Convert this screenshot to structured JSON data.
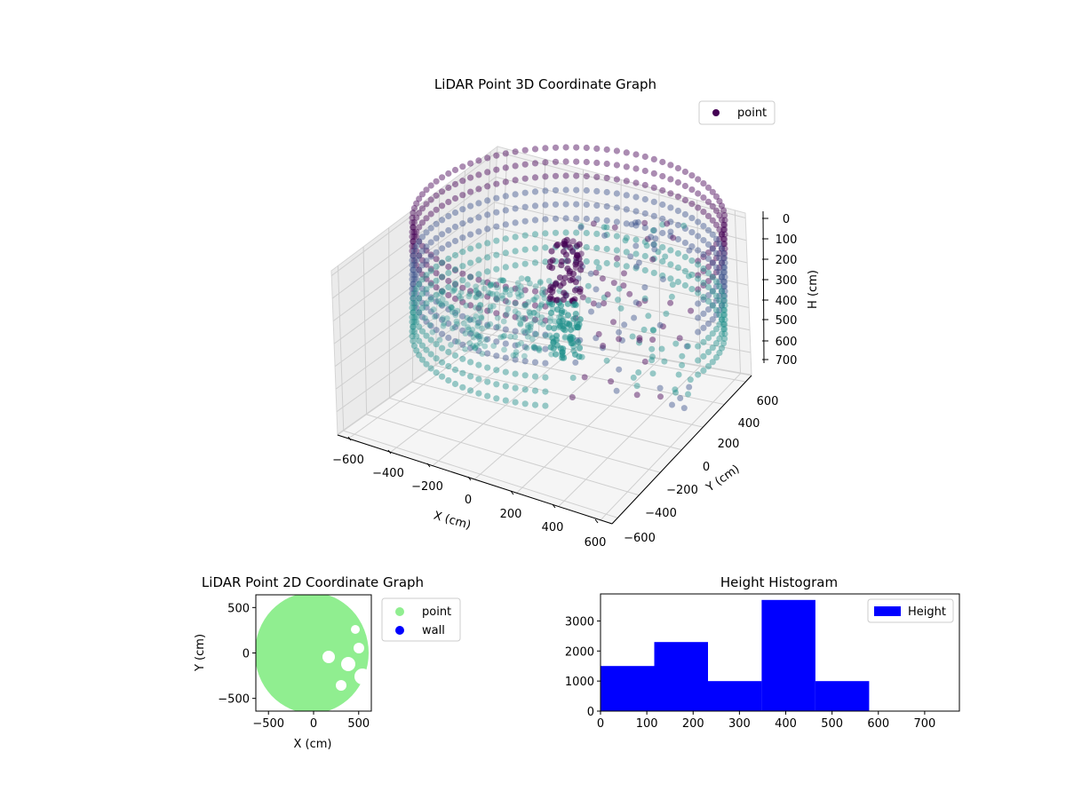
{
  "colors": {
    "viridis_dark": "#440154",
    "viridis_mid": "#3b528b",
    "viridis_teal": "#21918c",
    "point2d": "#90ee90",
    "wall2d": "#0000ff",
    "hist_bar": "#0000ff"
  },
  "chart_data": [
    {
      "type": "scatter3d",
      "title": "LiDAR Point 3D Coordinate Graph",
      "xlabel": "X (cm)",
      "ylabel": "Y (cm)",
      "zlabel": "H (cm)",
      "x_ticks": [
        "−600",
        "−400",
        "−200",
        "0",
        "200",
        "400",
        "600"
      ],
      "y_ticks": [
        "−600",
        "−400",
        "−200",
        "0",
        "200",
        "400",
        "600"
      ],
      "z_ticks": [
        "0",
        "100",
        "200",
        "300",
        "400",
        "500",
        "600",
        "700"
      ],
      "xlim": [
        -600,
        600
      ],
      "ylim": [
        -600,
        600
      ],
      "zlim": [
        0,
        750
      ],
      "z_inverted": true,
      "grid": true,
      "legend": {
        "position": "top-right",
        "entries": [
          "point"
        ]
      },
      "series": [
        {
          "name": "point",
          "color": "#440154"
        }
      ]
    },
    {
      "type": "scatter",
      "title": "LiDAR Point 2D Coordinate Graph",
      "xlabel": "X (cm)",
      "ylabel": "Y (cm)",
      "x_ticks": [
        "−500",
        "0",
        "500"
      ],
      "y_ticks": [
        "−500",
        "0",
        "500"
      ],
      "xlim": [
        -640,
        640
      ],
      "ylim": [
        -640,
        640
      ],
      "legend": {
        "position": "outside-right",
        "entries": [
          "point",
          "wall"
        ]
      },
      "series": [
        {
          "name": "point",
          "color": "#90ee90"
        },
        {
          "name": "wall",
          "color": "#0000ff"
        }
      ]
    },
    {
      "type": "bar",
      "title": "Height Histogram",
      "legend": {
        "position": "top-right",
        "entries": [
          "Height"
        ]
      },
      "series_name": "Height",
      "bins": [
        {
          "x0": 0,
          "x1": 116,
          "count": 1500
        },
        {
          "x0": 116,
          "x1": 232,
          "count": 2300
        },
        {
          "x0": 232,
          "x1": 348,
          "count": 1000
        },
        {
          "x0": 348,
          "x1": 464,
          "count": 3700
        },
        {
          "x0": 464,
          "x1": 580,
          "count": 1000
        }
      ],
      "x_ticks": [
        "0",
        "100",
        "200",
        "300",
        "400",
        "500",
        "600",
        "700"
      ],
      "y_ticks": [
        "0",
        "1000",
        "2000",
        "3000"
      ],
      "xlim": [
        0,
        775
      ],
      "ylim": [
        0,
        3900
      ]
    }
  ]
}
